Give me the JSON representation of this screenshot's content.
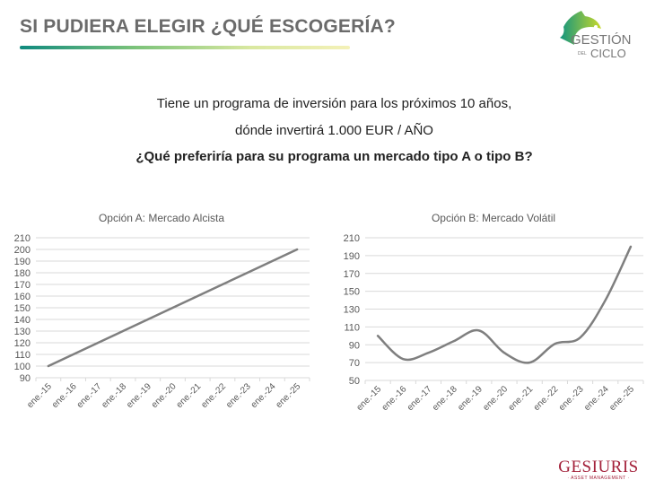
{
  "header": {
    "title": "SI PUDIERA ELEGIR ¿QUÉ ESCOGERÍA?",
    "logo_text_1": "GESTIÓN",
    "logo_text_2": "DEL",
    "logo_text_3": "CICLO"
  },
  "intro": {
    "line1": "Tiene un programa de inversión para los próximos 10 años,",
    "line2": "dónde invertirá 1.000 EUR / AÑO",
    "question": "¿Qué preferiría para su programa un mercado tipo A o tipo B?"
  },
  "footer": {
    "brand": "GESIURIS",
    "sub": "· ASSET MANAGEMENT ·"
  },
  "colors": {
    "line": "#7f7f7f",
    "grid": "#d9d9d9",
    "brand": "#a3213a"
  },
  "chart_data": [
    {
      "type": "line",
      "title": "Opción A: Mercado Alcista",
      "categories": [
        "ene.-15",
        "ene.-16",
        "ene.-17",
        "ene.-18",
        "ene.-19",
        "ene.-20",
        "ene.-21",
        "ene.-22",
        "ene.-23",
        "ene.-24",
        "ene.-25"
      ],
      "values": [
        100,
        110,
        120,
        130,
        140,
        150,
        160,
        170,
        180,
        190,
        200
      ],
      "ylim": [
        90,
        210
      ],
      "yticks": [
        90,
        100,
        110,
        120,
        130,
        140,
        150,
        160,
        170,
        180,
        190,
        200,
        210
      ],
      "grid": true,
      "smooth": false
    },
    {
      "type": "line",
      "title": "Opción B: Mercado Volátil",
      "categories": [
        "ene.-15",
        "ene.-16",
        "ene.-17",
        "ene.-18",
        "ene.-19",
        "ene.-20",
        "ene.-21",
        "ene.-22",
        "ene.-23",
        "ene.-24",
        "ene.-25"
      ],
      "values": [
        100,
        74,
        81,
        94,
        106,
        81,
        70,
        91,
        98,
        140,
        200
      ],
      "ylim": [
        50,
        210
      ],
      "yticks": [
        50,
        70,
        90,
        110,
        130,
        150,
        170,
        190,
        210
      ],
      "grid": true,
      "smooth": true
    }
  ]
}
